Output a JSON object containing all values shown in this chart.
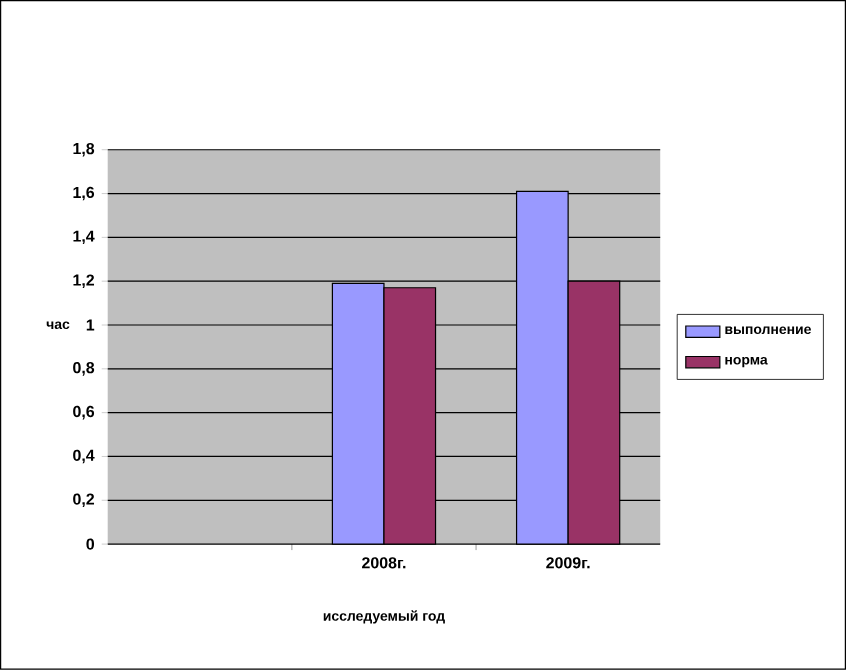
{
  "chart_data": {
    "type": "bar",
    "xlabel": "исследуемый год",
    "ylabel": "час",
    "categories": [
      null,
      "2008г.",
      "2009г."
    ],
    "series": [
      {
        "name": "выполнение",
        "color": "#9999ff",
        "values": [
          null,
          1.19,
          1.61
        ]
      },
      {
        "name": "норма",
        "color": "#993366",
        "values": [
          null,
          1.17,
          1.2
        ]
      }
    ],
    "ylim": [
      0,
      1.8
    ],
    "yticks": [
      0,
      {
        "value": 0.2,
        "label": "0,2"
      },
      {
        "value": 0.4,
        "label": "0,4"
      },
      {
        "value": 0.6,
        "label": "0,6"
      },
      {
        "value": 0.8,
        "label": "0,8"
      },
      1,
      {
        "value": 1.2,
        "label": "1,2"
      },
      {
        "value": 1.4,
        "label": "1,4"
      },
      {
        "value": 1.6,
        "label": "1,6"
      },
      {
        "value": 1.8,
        "label": "1,8"
      }
    ],
    "grid": "y",
    "legend": "right"
  }
}
